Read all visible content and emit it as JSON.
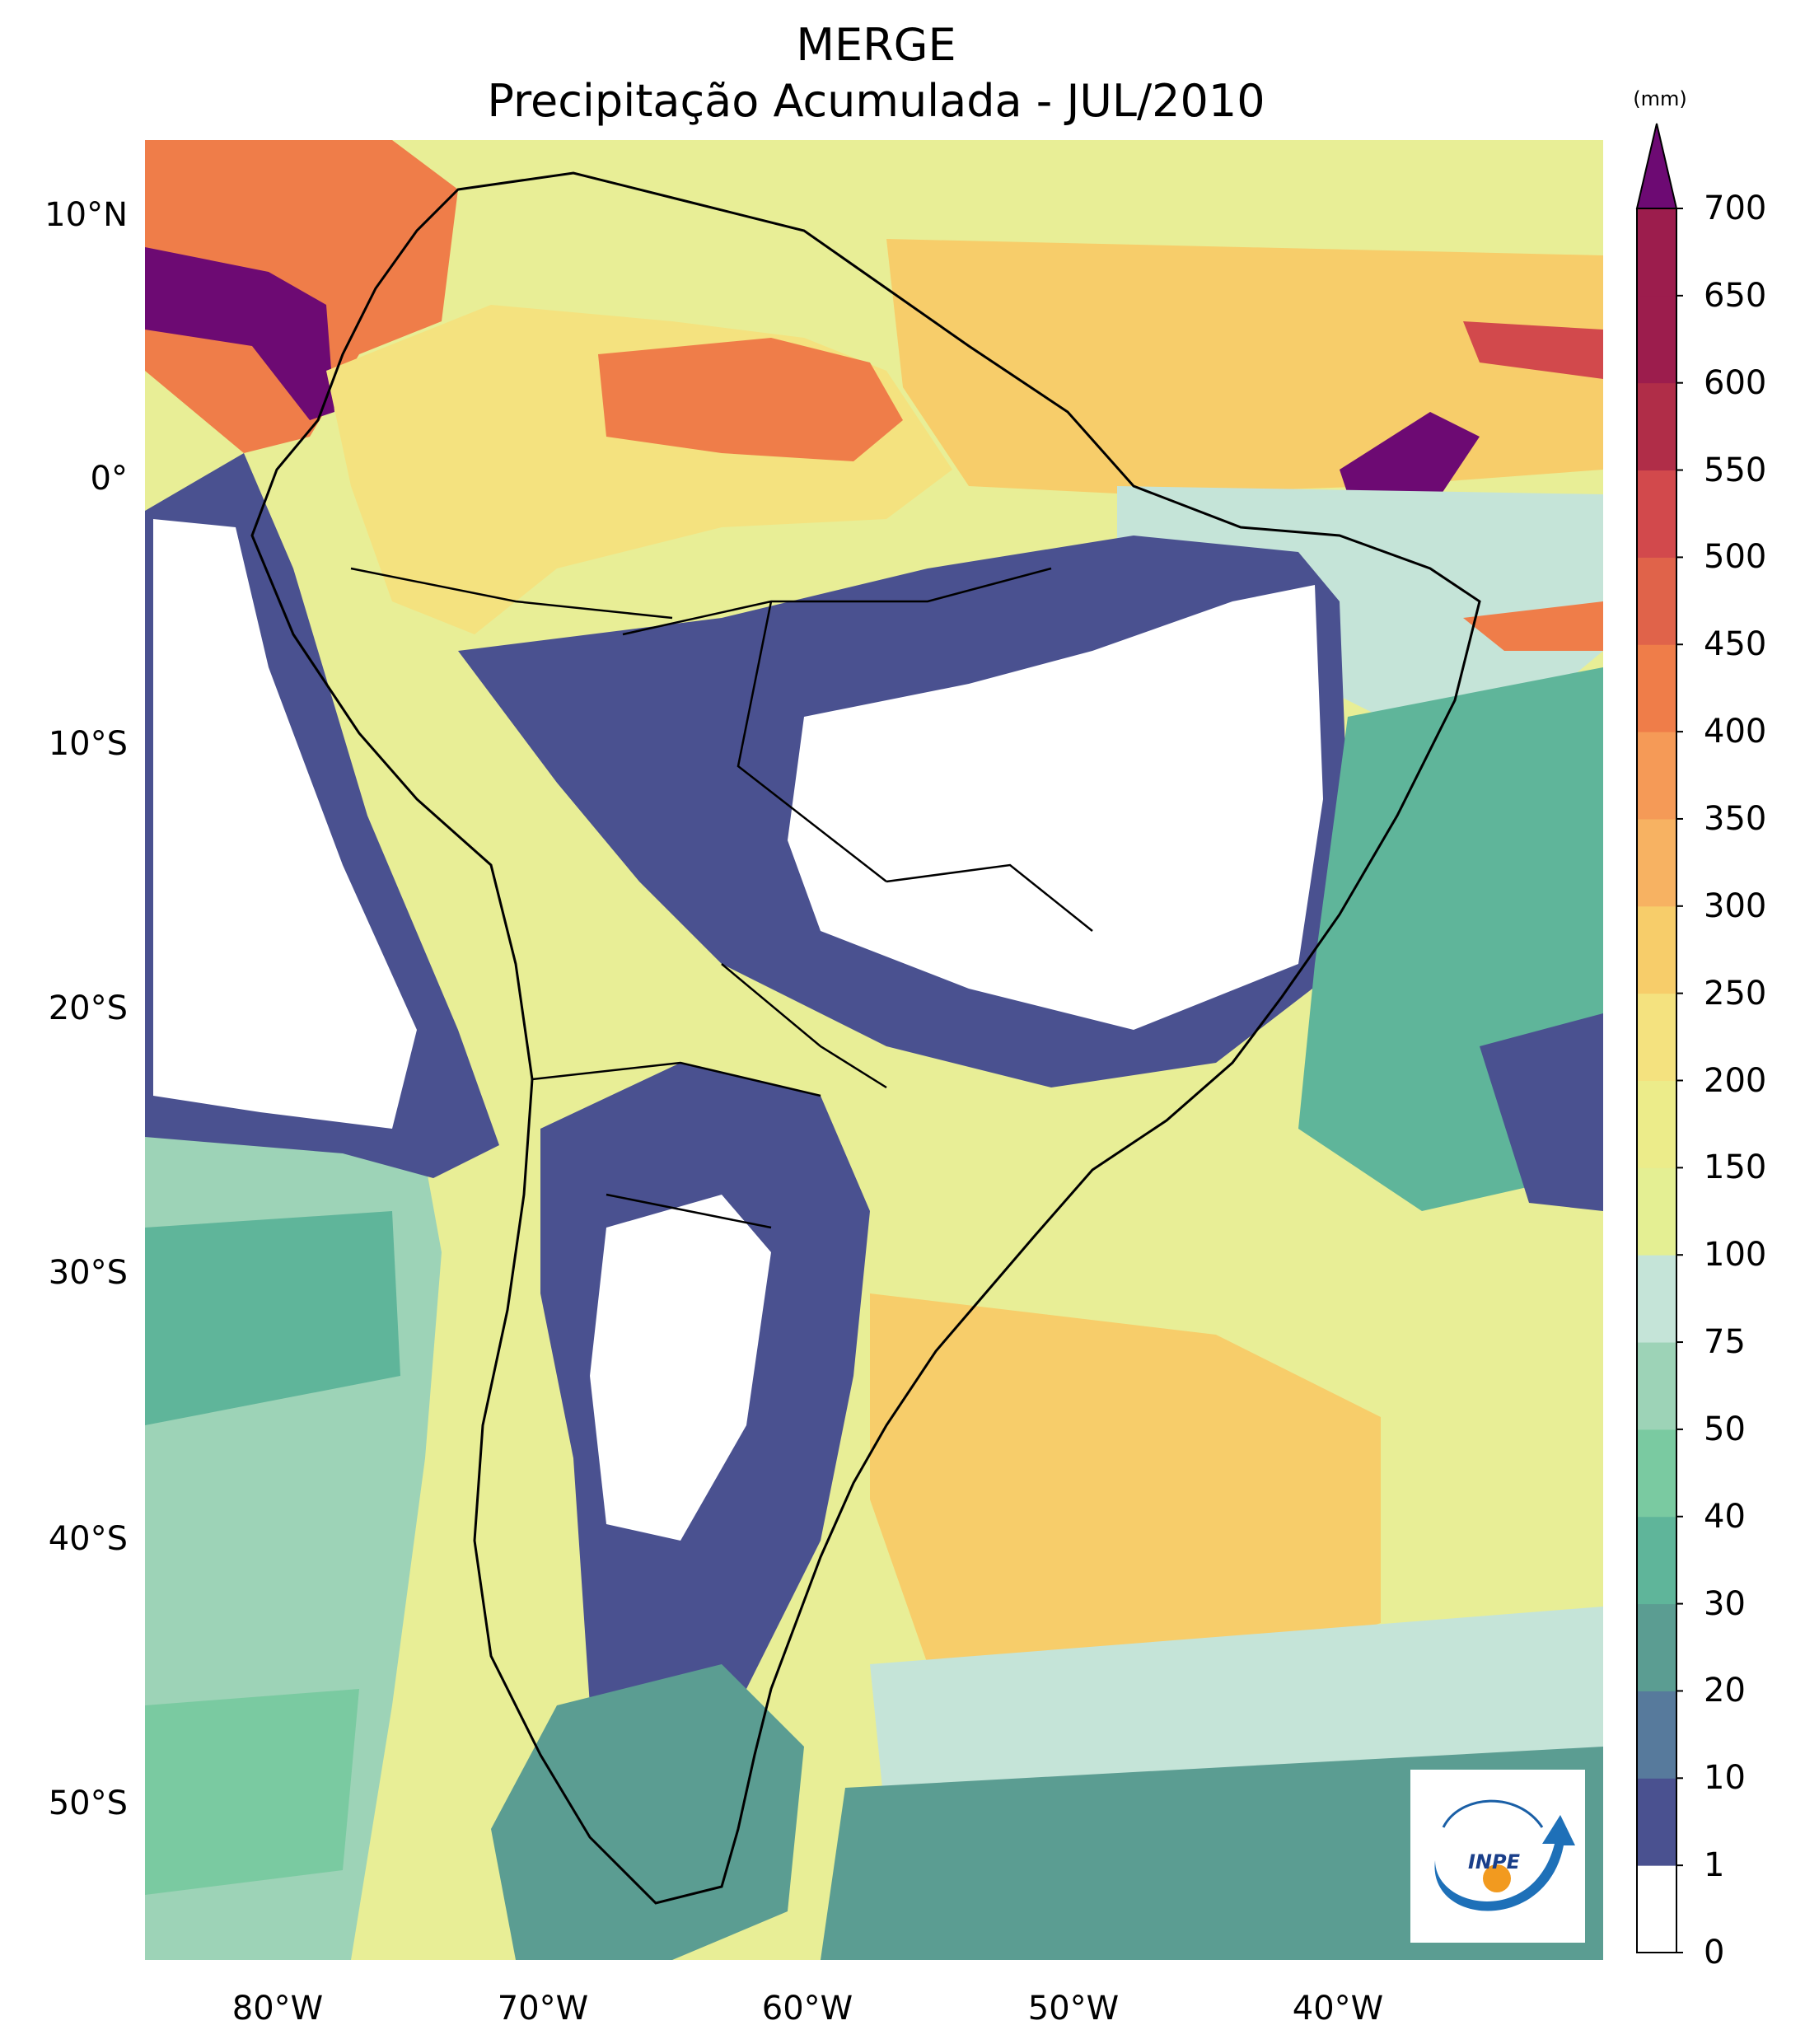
{
  "title": {
    "line1": "MERGE",
    "line2": "Precipitação Acumulada - JUL/2010"
  },
  "map": {
    "type": "precipitation-contour-map",
    "region": "South America",
    "extent": {
      "lon": [
        -85,
        -30
      ],
      "lat": [
        -55.5,
        12.5
      ]
    },
    "lat_ticks": [
      {
        "value": 10,
        "label": "10°N"
      },
      {
        "value": 0,
        "label": "0°"
      },
      {
        "value": -10,
        "label": "10°S"
      },
      {
        "value": -20,
        "label": "20°S"
      },
      {
        "value": -30,
        "label": "30°S"
      },
      {
        "value": -40,
        "label": "40°S"
      },
      {
        "value": -50,
        "label": "50°S"
      }
    ],
    "lon_ticks": [
      {
        "value": -80,
        "label": "80°W"
      },
      {
        "value": -70,
        "label": "70°W"
      },
      {
        "value": -60,
        "label": "60°W"
      },
      {
        "value": -50,
        "label": "50°W"
      },
      {
        "value": -40,
        "label": "40°W"
      }
    ]
  },
  "colorbar": {
    "unit": "(mm)",
    "levels": [
      "0",
      "1",
      "10",
      "20",
      "30",
      "40",
      "50",
      "75",
      "100",
      "150",
      "200",
      "250",
      "300",
      "350",
      "400",
      "450",
      "500",
      "550",
      "600",
      "650",
      "700"
    ],
    "colors": [
      "#ffffff",
      "#4a5190",
      "#577a9c",
      "#5b9d92",
      "#5fb59a",
      "#7acaa1",
      "#9dd3b7",
      "#c5e4d8",
      "#e4ef93",
      "#ecec8a",
      "#f4e27f",
      "#f7cd6a",
      "#f7b262",
      "#f59a57",
      "#ef7d49",
      "#e0634a",
      "#d2494c",
      "#b02d48",
      "#9c1d4d"
    ],
    "extend_color": "#6d0a73"
  },
  "logo": {
    "text": "INPE"
  }
}
